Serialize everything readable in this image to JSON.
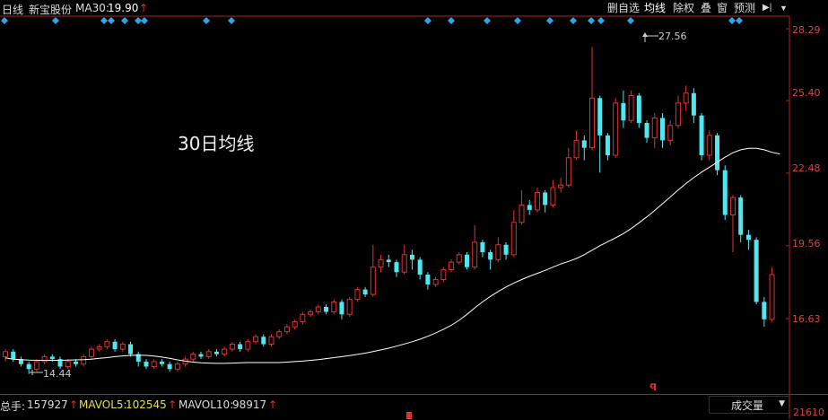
{
  "header": {
    "period": "日线",
    "stock_name": "新宝股份",
    "ma_label": "MA30:",
    "ma_value": "19.90",
    "up_arrow": "↑"
  },
  "toolbar": {
    "items": [
      "删自选",
      "均线",
      "除权",
      "叠",
      "窗",
      "预测"
    ],
    "collapse_icon": "▶|",
    "menu_icon": "▼"
  },
  "price_axis": [
    "28.29",
    "25.40",
    "22.48",
    "19.56",
    "16.63"
  ],
  "annotations": {
    "high_label": "27.56",
    "low_label": "14.44",
    "ma_note": "30日均线",
    "q_marker": "q"
  },
  "volume_bar": {
    "total_label": "总手:",
    "total_value": "157927",
    "mavol5_label": "MAVOL5:",
    "mavol5_value": "102545",
    "mavol10_label": "MAVOL10:",
    "mavol10_value": "98917",
    "dropdown_value": "成交量",
    "axis_value": "21610"
  },
  "colors": {
    "up": "#e03030",
    "down": "#4fe8f0",
    "ma": "#ffffff",
    "diamond": "#2aa7e8"
  },
  "chart_data": {
    "type": "candlestick",
    "ylim": [
      14.0,
      28.4
    ],
    "ma30": [
      15.05,
      15.0,
      14.98,
      14.96,
      14.95,
      14.95,
      14.95,
      14.95,
      14.96,
      14.97,
      14.98,
      15.0,
      15.03,
      15.06,
      15.1,
      15.13,
      15.15,
      15.16,
      15.15,
      15.12,
      15.08,
      15.03,
      14.97,
      14.92,
      14.88,
      14.85,
      14.84,
      14.83,
      14.83,
      14.84,
      14.85,
      14.86,
      14.86,
      14.86,
      14.86,
      14.86,
      14.88,
      14.9,
      14.92,
      14.95,
      14.98,
      15.02,
      15.06,
      15.1,
      15.14,
      15.19,
      15.24,
      15.3,
      15.37,
      15.44,
      15.52,
      15.61,
      15.7,
      15.8,
      15.92,
      16.05,
      16.2,
      16.36,
      16.56,
      16.8,
      17.06,
      17.3,
      17.52,
      17.72,
      17.9,
      18.06,
      18.2,
      18.33,
      18.45,
      18.57,
      18.7,
      18.83,
      18.93,
      19.05,
      19.2,
      19.38,
      19.56,
      19.72,
      19.88,
      20.05,
      20.25,
      20.48,
      20.72,
      20.98,
      21.25,
      21.52,
      21.8,
      22.06,
      22.3,
      22.52,
      22.72,
      22.92,
      23.12,
      23.3,
      23.42,
      23.48,
      23.48,
      23.42,
      23.32,
      23.25
    ],
    "candles": [
      [
        15.1,
        15.3,
        14.9,
        15.4
      ],
      [
        15.3,
        15.0,
        14.9,
        15.4
      ],
      [
        15.0,
        14.8,
        14.7,
        15.1
      ],
      [
        14.8,
        14.6,
        14.4,
        14.9
      ],
      [
        14.6,
        14.9,
        14.5,
        15.0
      ],
      [
        14.9,
        15.1,
        14.8,
        15.2
      ],
      [
        15.1,
        15.0,
        14.9,
        15.2
      ],
      [
        15.0,
        14.7,
        14.6,
        15.1
      ],
      [
        14.7,
        14.9,
        14.6,
        15.0
      ],
      [
        14.9,
        14.8,
        14.7,
        15.0
      ],
      [
        14.8,
        15.1,
        14.7,
        15.2
      ],
      [
        15.1,
        15.4,
        15.0,
        15.5
      ],
      [
        15.4,
        15.5,
        15.3,
        15.6
      ],
      [
        15.5,
        15.7,
        15.4,
        15.8
      ],
      [
        15.7,
        15.4,
        15.3,
        15.8
      ],
      [
        15.4,
        15.6,
        15.3,
        15.7
      ],
      [
        15.6,
        15.2,
        15.1,
        15.7
      ],
      [
        15.2,
        14.9,
        14.7,
        15.3
      ],
      [
        14.9,
        14.7,
        14.6,
        15.0
      ],
      [
        14.7,
        14.9,
        14.6,
        15.0
      ],
      [
        14.9,
        14.8,
        14.7,
        15.0
      ],
      [
        14.8,
        14.6,
        14.5,
        14.9
      ],
      [
        14.6,
        14.8,
        14.5,
        14.9
      ],
      [
        14.8,
        15.0,
        14.7,
        15.1
      ],
      [
        15.0,
        15.2,
        14.9,
        15.3
      ],
      [
        15.2,
        15.1,
        15.0,
        15.3
      ],
      [
        15.1,
        15.3,
        15.0,
        15.4
      ],
      [
        15.3,
        15.2,
        15.1,
        15.4
      ],
      [
        15.2,
        15.4,
        15.1,
        15.5
      ],
      [
        15.4,
        15.6,
        15.3,
        15.7
      ],
      [
        15.6,
        15.4,
        15.3,
        15.7
      ],
      [
        15.4,
        15.7,
        15.3,
        15.8
      ],
      [
        15.7,
        15.9,
        15.6,
        16.0
      ],
      [
        15.9,
        15.6,
        15.5,
        16.0
      ],
      [
        15.6,
        15.9,
        15.5,
        16.0
      ],
      [
        15.9,
        16.1,
        15.8,
        16.2
      ],
      [
        16.1,
        16.3,
        16.0,
        16.4
      ],
      [
        16.3,
        16.5,
        16.2,
        16.6
      ],
      [
        16.5,
        16.8,
        16.4,
        16.9
      ],
      [
        16.8,
        16.9,
        16.7,
        17.0
      ],
      [
        16.9,
        17.1,
        16.8,
        17.2
      ],
      [
        17.1,
        16.9,
        16.8,
        17.2
      ],
      [
        16.9,
        17.3,
        16.8,
        17.4
      ],
      [
        17.3,
        16.8,
        16.6,
        17.4
      ],
      [
        16.8,
        17.4,
        16.7,
        17.5
      ],
      [
        17.4,
        17.8,
        17.3,
        17.9
      ],
      [
        17.8,
        17.6,
        17.5,
        17.9
      ],
      [
        17.6,
        18.7,
        17.5,
        19.6
      ],
      [
        18.7,
        19.0,
        18.5,
        19.2
      ],
      [
        19.0,
        18.9,
        18.7,
        19.2
      ],
      [
        18.9,
        18.5,
        18.3,
        19.0
      ],
      [
        18.5,
        19.2,
        18.4,
        19.6
      ],
      [
        19.2,
        19.0,
        18.6,
        19.4
      ],
      [
        19.0,
        18.4,
        18.2,
        19.1
      ],
      [
        18.4,
        18.0,
        17.8,
        18.5
      ],
      [
        18.0,
        18.2,
        17.9,
        18.3
      ],
      [
        18.2,
        18.6,
        18.1,
        18.7
      ],
      [
        18.6,
        18.9,
        18.5,
        19.0
      ],
      [
        18.9,
        19.2,
        18.8,
        19.3
      ],
      [
        19.2,
        18.7,
        18.6,
        19.3
      ],
      [
        18.7,
        19.7,
        18.6,
        20.4
      ],
      [
        19.7,
        19.3,
        19.1,
        19.8
      ],
      [
        19.3,
        19.0,
        18.6,
        19.4
      ],
      [
        19.0,
        19.6,
        18.9,
        19.9
      ],
      [
        19.6,
        19.2,
        19.0,
        19.7
      ],
      [
        19.2,
        20.5,
        19.1,
        21.0
      ],
      [
        20.5,
        21.2,
        20.4,
        21.8
      ],
      [
        21.2,
        21.0,
        20.8,
        21.4
      ],
      [
        21.0,
        21.7,
        20.9,
        21.9
      ],
      [
        21.7,
        21.2,
        20.9,
        21.8
      ],
      [
        21.2,
        21.9,
        21.1,
        22.2
      ],
      [
        21.9,
        22.0,
        21.7,
        22.3
      ],
      [
        22.0,
        23.1,
        21.9,
        23.5
      ],
      [
        23.1,
        23.8,
        23.0,
        24.2
      ],
      [
        23.8,
        23.5,
        23.0,
        24.0
      ],
      [
        23.5,
        25.5,
        23.4,
        27.56
      ],
      [
        25.5,
        24.0,
        22.5,
        25.6
      ],
      [
        24.0,
        23.2,
        23.0,
        24.1
      ],
      [
        23.2,
        25.3,
        23.1,
        25.5
      ],
      [
        25.3,
        24.6,
        24.3,
        25.8
      ],
      [
        24.6,
        25.6,
        24.5,
        25.8
      ],
      [
        25.6,
        24.5,
        24.3,
        25.7
      ],
      [
        24.5,
        23.9,
        23.7,
        24.6
      ],
      [
        23.9,
        24.7,
        23.5,
        24.9
      ],
      [
        24.7,
        23.8,
        23.5,
        24.9
      ],
      [
        23.8,
        24.4,
        23.6,
        24.6
      ],
      [
        24.4,
        25.3,
        24.3,
        25.6
      ],
      [
        25.3,
        25.7,
        25.0,
        26.0
      ],
      [
        25.7,
        24.8,
        24.5,
        25.9
      ],
      [
        24.8,
        23.2,
        23.0,
        24.9
      ],
      [
        23.2,
        24.0,
        23.0,
        24.2
      ],
      [
        24.0,
        22.6,
        22.4,
        24.1
      ],
      [
        22.6,
        20.8,
        20.6,
        22.8
      ],
      [
        20.8,
        21.5,
        19.3,
        21.6
      ],
      [
        21.5,
        20.0,
        19.7,
        21.6
      ],
      [
        20.0,
        19.8,
        19.4,
        20.2
      ],
      [
        19.8,
        17.3,
        17.2,
        19.9
      ],
      [
        17.3,
        16.6,
        16.3,
        17.5
      ],
      [
        16.6,
        18.4,
        16.5,
        18.7
      ]
    ],
    "markers": [
      5,
      62,
      116,
      124,
      139,
      154,
      161,
      230,
      258,
      477,
      503,
      543,
      577,
      613,
      639,
      659,
      670,
      703,
      816,
      824
    ]
  }
}
